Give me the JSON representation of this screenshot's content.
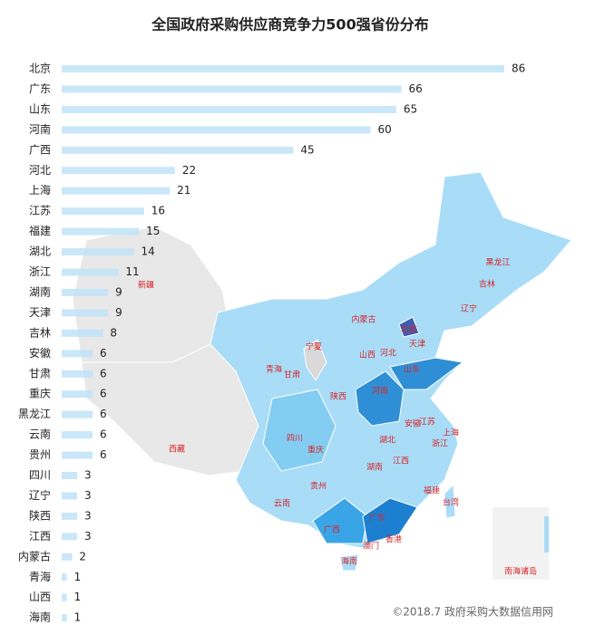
{
  "chart_data": {
    "type": "bar",
    "title": "全国政府采购供应商竞争力500强省份分布",
    "categories": [
      "北京",
      "广东",
      "山东",
      "河南",
      "广西",
      "河北",
      "上海",
      "江苏",
      "福建",
      "湖北",
      "浙江",
      "湖南",
      "天津",
      "吉林",
      "安徽",
      "甘肃",
      "重庆",
      "黑龙江",
      "云南",
      "贵州",
      "四川",
      "辽宁",
      "陕西",
      "江西",
      "内蒙古",
      "青海",
      "山西",
      "海南"
    ],
    "values": [
      86,
      66,
      65,
      60,
      45,
      22,
      21,
      16,
      15,
      14,
      11,
      9,
      9,
      8,
      6,
      6,
      6,
      6,
      6,
      6,
      3,
      3,
      3,
      3,
      2,
      1,
      1,
      1
    ],
    "color": "#bfe3f8",
    "map_labels": [
      "新疆",
      "西藏",
      "青海",
      "甘肃",
      "宁夏",
      "内蒙古",
      "黑龙江",
      "吉林",
      "辽宁",
      "北京",
      "天津",
      "河北",
      "山西",
      "陕西",
      "山东",
      "河南",
      "四川",
      "重庆",
      "湖北",
      "安徽",
      "江苏",
      "上海",
      "浙江",
      "湖南",
      "江西",
      "贵州",
      "云南",
      "广西",
      "广东",
      "福建",
      "台湾",
      "香港",
      "澳门",
      "海南",
      "南海诸岛"
    ],
    "annotation": "©2018.7 政府采购大数据信用网"
  }
}
